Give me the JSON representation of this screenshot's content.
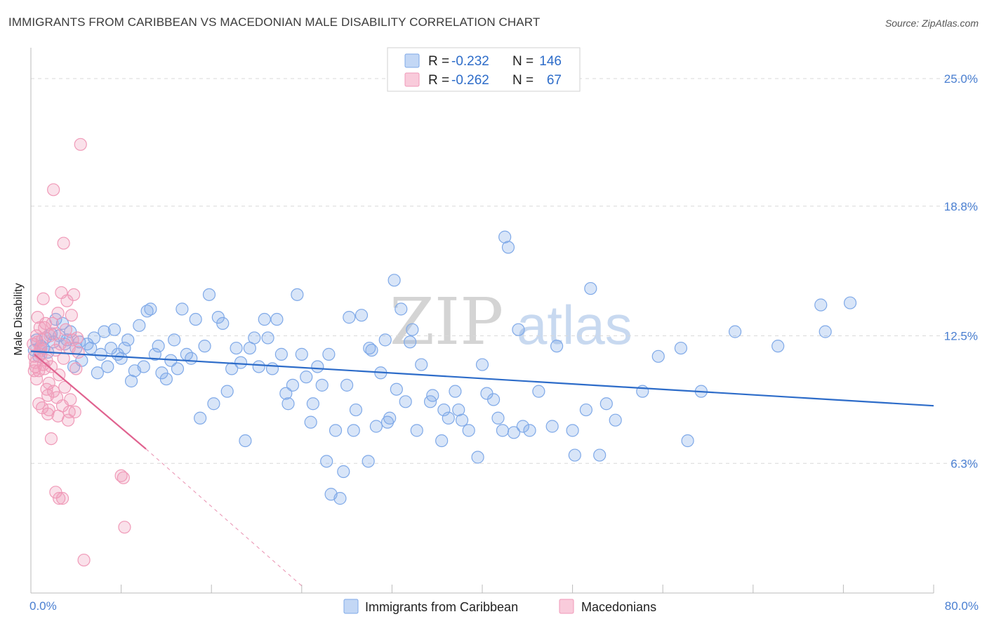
{
  "title": "IMMIGRANTS FROM CARIBBEAN VS MACEDONIAN MALE DISABILITY CORRELATION CHART",
  "source": "Source: ZipAtlas.com",
  "watermark": {
    "zip": "ZIP",
    "atlas": "atlas"
  },
  "legend": {
    "rows": [
      {
        "r_label": "R = ",
        "r_value": "-0.232",
        "n_label": "N = ",
        "n_value": "146",
        "color": "#7fa9e8"
      },
      {
        "r_label": "R = ",
        "r_value": "-0.262",
        "n_label": "N = ",
        "n_value": "67",
        "color": "#f09ab8"
      }
    ]
  },
  "bottom_legend": [
    {
      "label": "Immigrants from Caribbean",
      "color": "#7fa9e8"
    },
    {
      "label": "Macedonians",
      "color": "#f09ab8"
    }
  ],
  "chart_data": {
    "type": "scatter",
    "title": "IMMIGRANTS FROM CARIBBEAN VS MACEDONIAN MALE DISABILITY CORRELATION CHART",
    "xlabel": "",
    "ylabel": "Male Disability",
    "xlim": [
      0,
      80
    ],
    "ylim": [
      0,
      26.5
    ],
    "x_tick_labels": [
      "0.0%",
      "80.0%"
    ],
    "y_ticks": [
      6.3,
      12.5,
      18.8,
      25.0
    ],
    "y_tick_labels": [
      "6.3%",
      "12.5%",
      "18.8%",
      "25.0%"
    ],
    "grid": true,
    "series": [
      {
        "name": "Immigrants from Caribbean",
        "color": "#7fa9e8",
        "line_color": "#2d6cc9",
        "r": -0.232,
        "n": 146,
        "trend": {
          "x": [
            0,
            80
          ],
          "y": [
            11.75,
            9.1
          ]
        },
        "points": [
          [
            0.3,
            11.8
          ],
          [
            0.5,
            12.3
          ],
          [
            0.7,
            11.5
          ],
          [
            0.9,
            12.0
          ],
          [
            1.1,
            11.9
          ],
          [
            1.3,
            12.4
          ],
          [
            1.5,
            11.7
          ],
          [
            1.8,
            12.6
          ],
          [
            2.0,
            12.2
          ],
          [
            2.2,
            13.3
          ],
          [
            2.5,
            12.5
          ],
          [
            2.8,
            13.1
          ],
          [
            3.0,
            12.1
          ],
          [
            3.2,
            12.3
          ],
          [
            3.5,
            12.7
          ],
          [
            3.8,
            11.0
          ],
          [
            4.0,
            11.9
          ],
          [
            4.3,
            12.2
          ],
          [
            4.5,
            11.3
          ],
          [
            5.0,
            12.1
          ],
          [
            5.3,
            11.9
          ],
          [
            5.6,
            12.4
          ],
          [
            5.9,
            10.7
          ],
          [
            6.2,
            11.6
          ],
          [
            6.5,
            12.7
          ],
          [
            6.8,
            11.0
          ],
          [
            7.1,
            11.9
          ],
          [
            7.4,
            12.8
          ],
          [
            7.7,
            11.6
          ],
          [
            8.0,
            11.4
          ],
          [
            8.3,
            11.9
          ],
          [
            8.6,
            12.3
          ],
          [
            8.9,
            10.3
          ],
          [
            9.2,
            10.8
          ],
          [
            9.6,
            13.0
          ],
          [
            10.0,
            11.0
          ],
          [
            10.3,
            13.7
          ],
          [
            10.6,
            13.8
          ],
          [
            11.0,
            11.6
          ],
          [
            11.3,
            12.0
          ],
          [
            11.6,
            10.7
          ],
          [
            12.0,
            10.4
          ],
          [
            12.4,
            11.3
          ],
          [
            12.7,
            12.3
          ],
          [
            13.0,
            10.9
          ],
          [
            13.4,
            13.8
          ],
          [
            13.8,
            11.6
          ],
          [
            14.2,
            11.4
          ],
          [
            14.6,
            13.3
          ],
          [
            15.0,
            8.5
          ],
          [
            15.4,
            12.0
          ],
          [
            15.8,
            14.5
          ],
          [
            16.2,
            9.2
          ],
          [
            16.6,
            13.4
          ],
          [
            17.0,
            13.1
          ],
          [
            17.4,
            9.8
          ],
          [
            17.8,
            10.9
          ],
          [
            18.2,
            11.9
          ],
          [
            18.6,
            11.2
          ],
          [
            19.0,
            7.4
          ],
          [
            19.4,
            11.9
          ],
          [
            19.8,
            12.4
          ],
          [
            20.2,
            11.0
          ],
          [
            20.7,
            13.3
          ],
          [
            21.0,
            12.4
          ],
          [
            21.4,
            10.9
          ],
          [
            21.8,
            13.3
          ],
          [
            22.2,
            11.6
          ],
          [
            22.6,
            9.7
          ],
          [
            22.8,
            9.2
          ],
          [
            23.2,
            10.1
          ],
          [
            23.6,
            14.5
          ],
          [
            24.0,
            11.6
          ],
          [
            24.4,
            10.5
          ],
          [
            24.8,
            8.3
          ],
          [
            25.0,
            9.2
          ],
          [
            25.4,
            11.0
          ],
          [
            25.8,
            10.1
          ],
          [
            26.2,
            6.4
          ],
          [
            26.4,
            11.6
          ],
          [
            26.6,
            4.8
          ],
          [
            27.0,
            7.9
          ],
          [
            27.4,
            4.6
          ],
          [
            27.7,
            5.9
          ],
          [
            28.0,
            10.1
          ],
          [
            28.2,
            13.4
          ],
          [
            28.6,
            7.9
          ],
          [
            28.8,
            8.9
          ],
          [
            29.3,
            13.5
          ],
          [
            29.9,
            6.4
          ],
          [
            30.0,
            11.9
          ],
          [
            30.2,
            11.8
          ],
          [
            30.6,
            8.1
          ],
          [
            31.0,
            10.7
          ],
          [
            31.4,
            12.3
          ],
          [
            31.6,
            8.3
          ],
          [
            31.8,
            8.5
          ],
          [
            32.2,
            15.2
          ],
          [
            32.4,
            9.9
          ],
          [
            32.8,
            13.8
          ],
          [
            33.2,
            9.3
          ],
          [
            33.6,
            12.2
          ],
          [
            33.8,
            12.8
          ],
          [
            34.2,
            7.9
          ],
          [
            34.6,
            11.1
          ],
          [
            35.4,
            9.3
          ],
          [
            35.6,
            9.6
          ],
          [
            36.4,
            7.4
          ],
          [
            36.6,
            8.9
          ],
          [
            37.0,
            8.5
          ],
          [
            37.6,
            9.8
          ],
          [
            37.9,
            8.9
          ],
          [
            38.2,
            8.4
          ],
          [
            38.8,
            7.9
          ],
          [
            39.6,
            6.6
          ],
          [
            40.0,
            11.1
          ],
          [
            40.4,
            9.7
          ],
          [
            41.0,
            9.4
          ],
          [
            41.4,
            8.5
          ],
          [
            41.8,
            7.9
          ],
          [
            42.0,
            17.3
          ],
          [
            42.3,
            16.8
          ],
          [
            42.8,
            7.8
          ],
          [
            43.2,
            12.8
          ],
          [
            43.6,
            8.1
          ],
          [
            44.2,
            7.9
          ],
          [
            45.0,
            9.8
          ],
          [
            46.2,
            8.1
          ],
          [
            46.6,
            12.0
          ],
          [
            48.0,
            7.9
          ],
          [
            48.2,
            6.7
          ],
          [
            49.2,
            8.9
          ],
          [
            49.6,
            14.8
          ],
          [
            50.4,
            6.7
          ],
          [
            51.0,
            9.2
          ],
          [
            51.8,
            8.4
          ],
          [
            54.2,
            9.8
          ],
          [
            55.6,
            11.5
          ],
          [
            57.6,
            11.9
          ],
          [
            58.2,
            7.4
          ],
          [
            59.4,
            9.8
          ],
          [
            62.4,
            12.7
          ],
          [
            66.2,
            12.0
          ],
          [
            70.0,
            14.0
          ],
          [
            70.4,
            12.7
          ],
          [
            72.6,
            14.1
          ]
        ]
      },
      {
        "name": "Macedonians",
        "color": "#f09ab8",
        "line_color": "#e0628f",
        "r": -0.262,
        "n": 67,
        "trend": {
          "x": [
            0.3,
            10.2
          ],
          "y": [
            11.6,
            7.0
          ]
        },
        "trend_extension": {
          "x": [
            10.2,
            24.1
          ],
          "y": [
            7.0,
            0.3
          ]
        },
        "points": [
          [
            0.2,
            12.1
          ],
          [
            0.3,
            11.5
          ],
          [
            0.4,
            11.0
          ],
          [
            0.5,
            12.5
          ],
          [
            0.6,
            13.4
          ],
          [
            0.7,
            10.8
          ],
          [
            0.8,
            12.9
          ],
          [
            0.9,
            11.6
          ],
          [
            1.0,
            9.0
          ],
          [
            1.1,
            14.3
          ],
          [
            1.2,
            10.9
          ],
          [
            1.3,
            13.1
          ],
          [
            1.4,
            11.3
          ],
          [
            1.5,
            8.7
          ],
          [
            1.6,
            10.2
          ],
          [
            1.7,
            12.5
          ],
          [
            1.8,
            11.0
          ],
          [
            1.9,
            13.1
          ],
          [
            2.0,
            9.8
          ],
          [
            2.1,
            12.6
          ],
          [
            2.2,
            11.8
          ],
          [
            2.3,
            9.5
          ],
          [
            2.4,
            13.6
          ],
          [
            2.5,
            10.6
          ],
          [
            2.6,
            12.1
          ],
          [
            2.7,
            14.6
          ],
          [
            2.8,
            9.1
          ],
          [
            2.9,
            11.4
          ],
          [
            3.0,
            10.0
          ],
          [
            3.1,
            12.8
          ],
          [
            3.2,
            14.2
          ],
          [
            3.3,
            8.4
          ],
          [
            3.4,
            11.9
          ],
          [
            3.5,
            9.4
          ],
          [
            3.6,
            13.5
          ],
          [
            3.7,
            12.3
          ],
          [
            3.8,
            14.5
          ],
          [
            3.9,
            8.8
          ],
          [
            4.0,
            10.9
          ],
          [
            4.1,
            12.4
          ],
          [
            4.2,
            11.7
          ],
          [
            0.3,
            10.8
          ],
          [
            0.5,
            10.4
          ],
          [
            0.7,
            9.2
          ],
          [
            0.9,
            11.9
          ],
          [
            1.2,
            12.9
          ],
          [
            1.6,
            8.9
          ],
          [
            1.8,
            7.5
          ],
          [
            2.0,
            19.6
          ],
          [
            2.9,
            17.0
          ],
          [
            4.4,
            21.8
          ],
          [
            0.4,
            11.2
          ],
          [
            0.8,
            11.8
          ],
          [
            1.0,
            12.3
          ],
          [
            1.4,
            9.9
          ],
          [
            2.2,
            4.9
          ],
          [
            2.5,
            4.6
          ],
          [
            2.8,
            4.6
          ],
          [
            8.0,
            5.7
          ],
          [
            8.2,
            5.6
          ],
          [
            8.3,
            3.2
          ],
          [
            4.7,
            1.6
          ],
          [
            0.6,
            12.2
          ],
          [
            1.1,
            11.1
          ],
          [
            1.5,
            9.6
          ],
          [
            2.4,
            8.6
          ],
          [
            3.4,
            8.8
          ]
        ]
      }
    ]
  }
}
